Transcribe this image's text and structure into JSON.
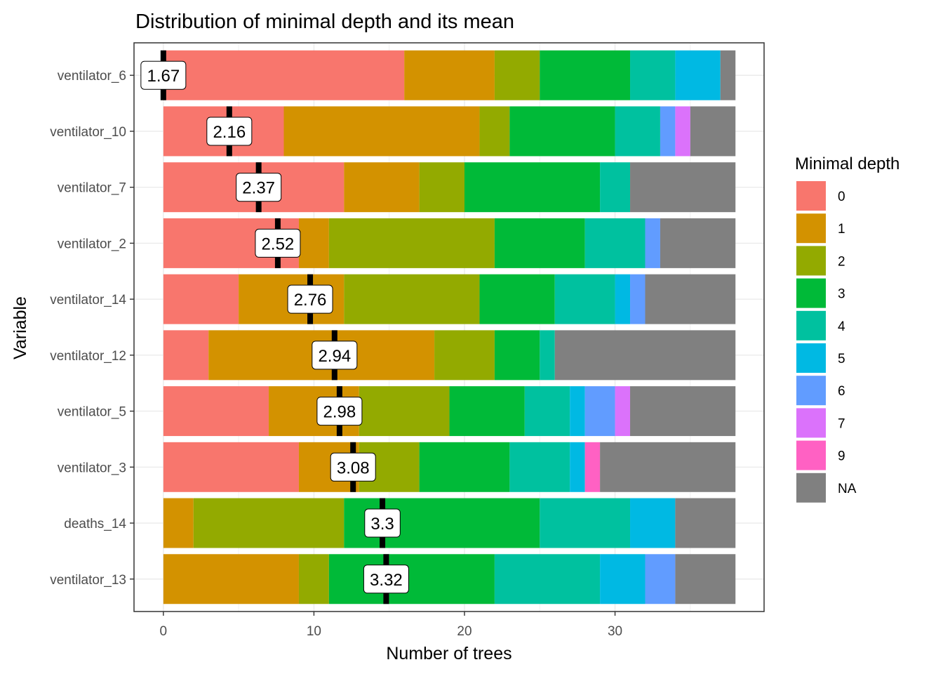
{
  "chart_data": {
    "type": "bar",
    "orientation": "horizontal",
    "stacked": true,
    "title": "Distribution of minimal depth and its mean",
    "xlabel": "Number of trees",
    "ylabel": "Variable",
    "xlim": [
      -1.95,
      39.9
    ],
    "xticks": [
      0,
      10,
      20,
      30
    ],
    "grid": true,
    "legend": {
      "title": "Minimal depth",
      "position": "right",
      "entries": [
        {
          "label": "0",
          "color": "#F8766D"
        },
        {
          "label": "1",
          "color": "#D39200"
        },
        {
          "label": "2",
          "color": "#93AA00"
        },
        {
          "label": "3",
          "color": "#00BA38"
        },
        {
          "label": "4",
          "color": "#00C19F"
        },
        {
          "label": "5",
          "color": "#00B9E3"
        },
        {
          "label": "6",
          "color": "#619CFF"
        },
        {
          "label": "7",
          "color": "#DB72FB"
        },
        {
          "label": "9",
          "color": "#FF61C3"
        },
        {
          "label": "NA",
          "color": "#808080"
        }
      ]
    },
    "categories": [
      "ventilator_6",
      "ventilator_10",
      "ventilator_7",
      "ventilator_2",
      "ventilator_14",
      "ventilator_12",
      "ventilator_5",
      "ventilator_3",
      "deaths_14",
      "ventilator_13"
    ],
    "series": [
      {
        "name": "0",
        "values": [
          16,
          8,
          12,
          9,
          5,
          3,
          7,
          9,
          0,
          0
        ]
      },
      {
        "name": "1",
        "values": [
          6,
          13,
          5,
          2,
          7,
          15,
          6,
          4,
          2,
          9
        ]
      },
      {
        "name": "2",
        "values": [
          3,
          2,
          3,
          11,
          9,
          4,
          6,
          4,
          10,
          2
        ]
      },
      {
        "name": "3",
        "values": [
          6,
          7,
          9,
          6,
          5,
          3,
          5,
          6,
          13,
          11
        ]
      },
      {
        "name": "4",
        "values": [
          3,
          3,
          2,
          4,
          4,
          1,
          3,
          4,
          6,
          7
        ]
      },
      {
        "name": "5",
        "values": [
          3,
          0,
          0,
          0,
          1,
          0,
          1,
          1,
          3,
          3
        ]
      },
      {
        "name": "6",
        "values": [
          0,
          1,
          0,
          1,
          1,
          0,
          2,
          0,
          0,
          2
        ]
      },
      {
        "name": "7",
        "values": [
          0,
          1,
          0,
          0,
          0,
          0,
          1,
          0,
          0,
          0
        ]
      },
      {
        "name": "9",
        "values": [
          0,
          0,
          0,
          0,
          0,
          0,
          0,
          1,
          0,
          0
        ]
      },
      {
        "name": "NA",
        "values": [
          1,
          3,
          7,
          5,
          6,
          12,
          7,
          9,
          4,
          4
        ]
      }
    ],
    "mean_minimal_depth": {
      "labels": [
        "1.67",
        "2.16",
        "2.37",
        "2.52",
        "2.76",
        "2.94",
        "2.98",
        "3.08",
        "3.3",
        "3.32"
      ],
      "marker_x": [
        0,
        4.38,
        6.33,
        7.6,
        9.75,
        11.37,
        11.7,
        12.6,
        14.55,
        14.8
      ]
    }
  }
}
